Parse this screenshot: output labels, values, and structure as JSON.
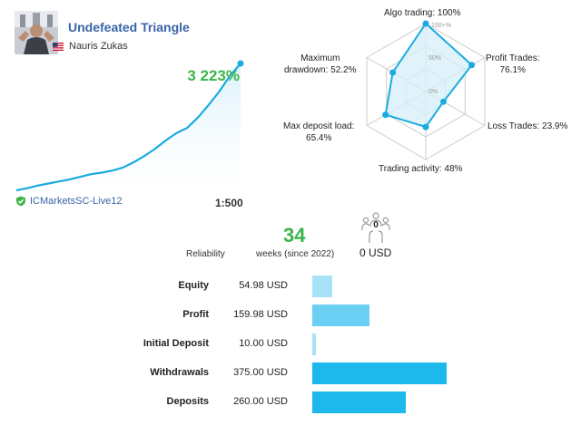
{
  "header": {
    "signal_name": "Undefeated Triangle",
    "author": "Nauris Zukas",
    "growth": "3 223%"
  },
  "account": {
    "broker": "ICMarketsSC-Live12",
    "leverage": "1:500"
  },
  "radar": {
    "ring_labels": [
      "100+%",
      "50%",
      "0%"
    ],
    "axes": [
      {
        "label": "Algo trading: 100%",
        "value": 100
      },
      {
        "label": "Profit Trades:\n76.1%",
        "value": 76.1
      },
      {
        "label": "Loss Trades: 23.9%",
        "value": 23.9
      },
      {
        "label": "Trading activity: 48%",
        "value": 48
      },
      {
        "label": "Max deposit load:\n65.4%",
        "value": 65.4
      },
      {
        "label": "Maximum\ndrawdown: 52.2%",
        "value": 52.2
      }
    ],
    "colors": {
      "fill": "#d6eef8",
      "line": "#1aabe0",
      "grid": "#cccccc"
    }
  },
  "stats": {
    "reliability_label": "Reliability",
    "weeks": "34",
    "weeks_label": "weeks (since 2022)",
    "subscribers": "0",
    "price": "0 USD"
  },
  "financials": [
    {
      "label": "Equity",
      "value": "54.98 USD",
      "amount": 54.98,
      "color": "#a8e2f8"
    },
    {
      "label": "Profit",
      "value": "159.98 USD",
      "amount": 159.98,
      "color": "#6cd0f4"
    },
    {
      "label": "Initial Deposit",
      "value": "10.00 USD",
      "amount": 10.0,
      "color": "#a8e2f8"
    },
    {
      "label": "Withdrawals",
      "value": "375.00 USD",
      "amount": 375.0,
      "color": "#1db8ec"
    },
    {
      "label": "Deposits",
      "value": "260.00 USD",
      "amount": 260.0,
      "color": "#1db8ec"
    }
  ],
  "chart_data": {
    "type": "area",
    "series": [
      {
        "values": [
          0.0,
          2.0,
          4.5,
          6.5,
          8.5,
          10.5,
          13.0,
          15.5,
          17.0,
          19.0,
          22.0,
          27.0,
          33.0,
          40.0,
          48.0,
          55.0,
          60.0,
          70.0,
          82.0,
          95.0,
          110.0,
          122.0
        ]
      }
    ],
    "colors": {
      "line": "#1aabe0",
      "fill_top": "#d9f1fb"
    }
  }
}
